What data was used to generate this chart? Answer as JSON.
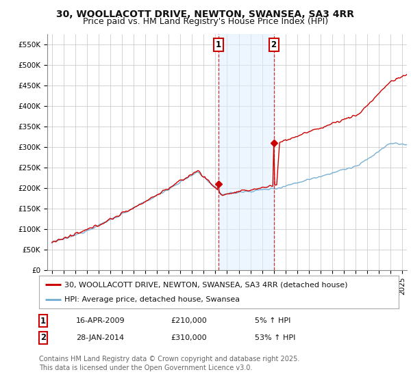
{
  "title": "30, WOOLLACOTT DRIVE, NEWTON, SWANSEA, SA3 4RR",
  "subtitle": "Price paid vs. HM Land Registry's House Price Index (HPI)",
  "ylim": [
    0,
    575000
  ],
  "yticks": [
    0,
    50000,
    100000,
    150000,
    200000,
    250000,
    300000,
    350000,
    400000,
    450000,
    500000,
    550000
  ],
  "ytick_labels": [
    "£0",
    "£50K",
    "£100K",
    "£150K",
    "£200K",
    "£250K",
    "£300K",
    "£350K",
    "£400K",
    "£450K",
    "£500K",
    "£550K"
  ],
  "xlim_start": 1994.6,
  "xlim_end": 2025.4,
  "background_color": "#ffffff",
  "plot_bg_color": "#ffffff",
  "grid_color": "#cccccc",
  "line1_color": "#cc0000",
  "line2_color": "#7ab0d4",
  "shade_color": "#ddeeff",
  "shade_alpha": 0.5,
  "marker_box_color": "#cc0000",
  "transaction1_year": 2009.29,
  "transaction1_price": 210000,
  "transaction1_date": "16-APR-2009",
  "transaction1_note": "5% ↑ HPI",
  "transaction2_year": 2014.08,
  "transaction2_price": 310000,
  "transaction2_date": "28-JAN-2014",
  "transaction2_note": "53% ↑ HPI",
  "legend1_label": "30, WOOLLACOTT DRIVE, NEWTON, SWANSEA, SA3 4RR (detached house)",
  "legend2_label": "HPI: Average price, detached house, Swansea",
  "footer": "Contains HM Land Registry data © Crown copyright and database right 2025.\nThis data is licensed under the Open Government Licence v3.0.",
  "title_fontsize": 10,
  "subtitle_fontsize": 9,
  "tick_fontsize": 7.5,
  "legend_fontsize": 8,
  "footer_fontsize": 7
}
